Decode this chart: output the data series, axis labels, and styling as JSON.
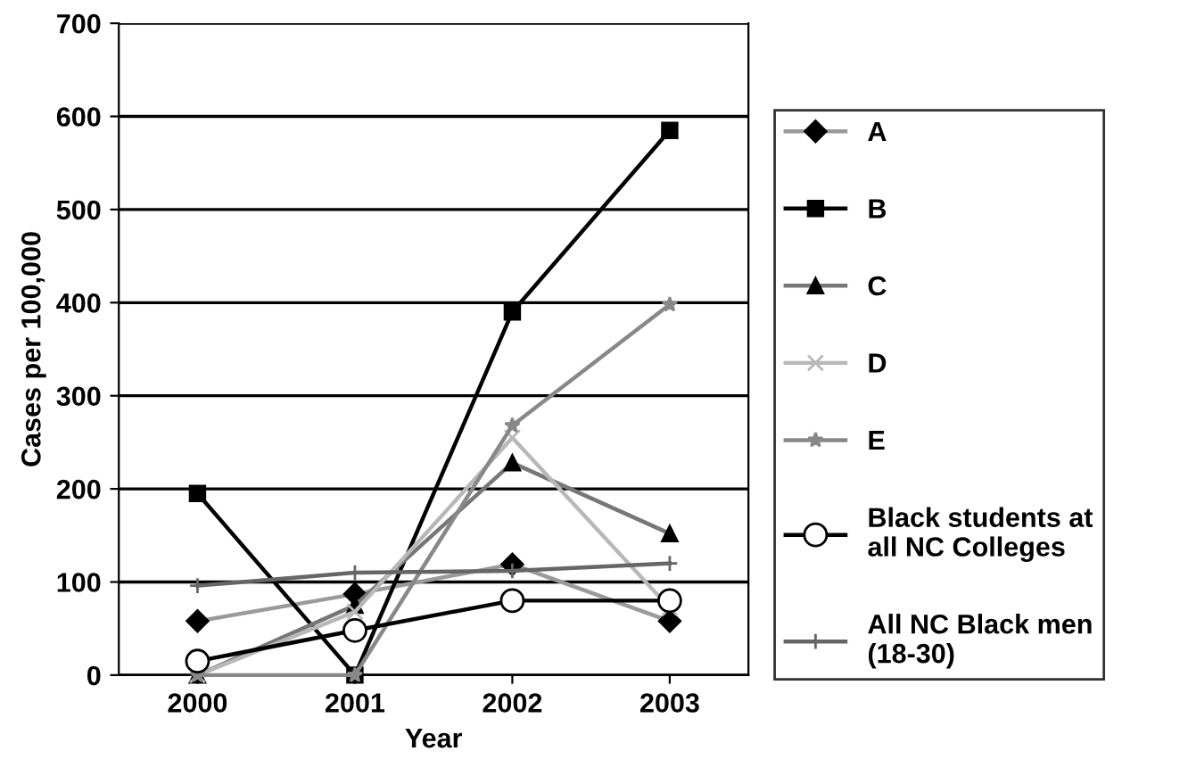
{
  "chart_data": {
    "type": "line",
    "xlabel": "Year",
    "ylabel": "Cases per 100,000",
    "categories": [
      "2000",
      "2001",
      "2002",
      "2003"
    ],
    "series": [
      {
        "name": "A",
        "color": "#9a9a9a",
        "marker": "diamond",
        "values": [
          58,
          87,
          119,
          58
        ]
      },
      {
        "name": "B",
        "color": "#000000",
        "marker": "square",
        "values": [
          195,
          0,
          390,
          585
        ]
      },
      {
        "name": "C",
        "color": "#777777",
        "marker": "triangle",
        "values": [
          0,
          75,
          228,
          152
        ]
      },
      {
        "name": "D",
        "color": "#b8b8b8",
        "marker": "cross",
        "values": [
          0,
          68,
          255,
          72
        ]
      },
      {
        "name": "E",
        "color": "#888888",
        "marker": "star",
        "values": [
          0,
          0,
          268,
          398
        ]
      },
      {
        "name": "Black students at all NC Colleges",
        "color": "#000000",
        "marker": "circle",
        "values": [
          15,
          48,
          80,
          80
        ]
      },
      {
        "name": "All NC Black men (18-30)",
        "color": "#666666",
        "marker": "plus",
        "values": [
          96,
          110,
          112,
          120
        ]
      }
    ],
    "ylim": [
      0,
      700
    ],
    "yticks": [
      0,
      100,
      200,
      300,
      400,
      500,
      600,
      700
    ],
    "grid": "y",
    "legend": "right"
  }
}
